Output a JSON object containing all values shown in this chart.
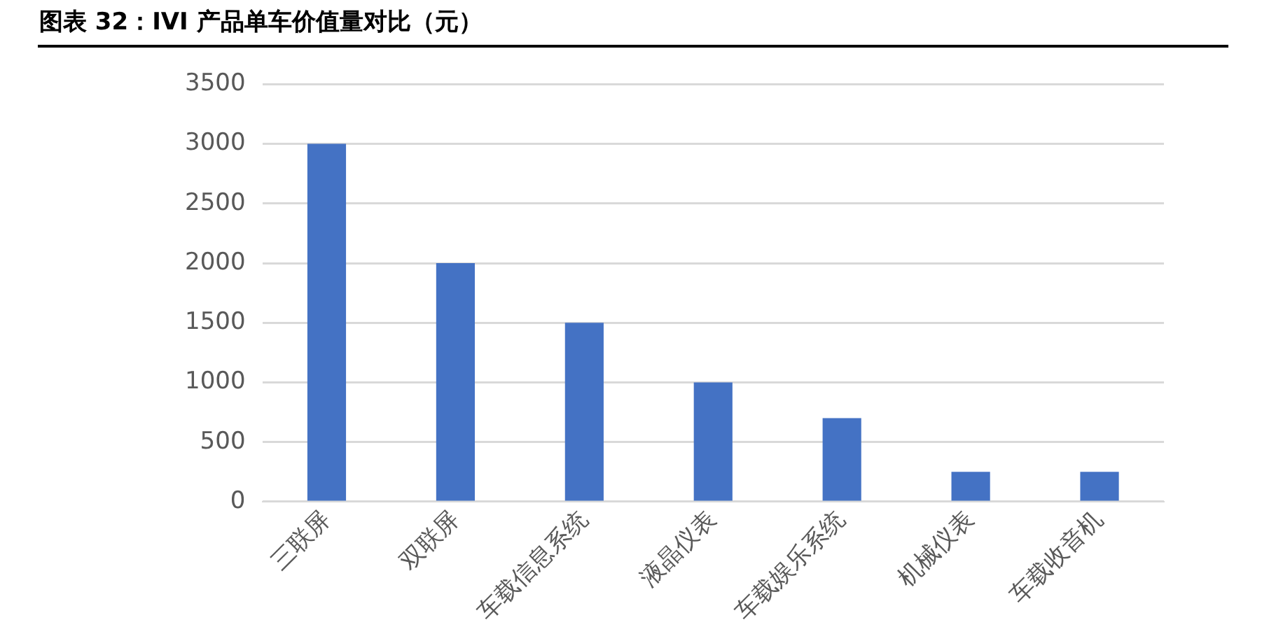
{
  "chart_data": {
    "type": "bar",
    "title": "图表 32：IVI 产品单车价值量对比（元）",
    "categories": [
      "三联屏",
      "双联屏",
      "车载信息系统",
      "液晶仪表",
      "车载娱乐系统",
      "机械仪表",
      "车载收音机"
    ],
    "values": [
      3000,
      2000,
      1500,
      1000,
      700,
      250,
      250
    ],
    "color": "#4472c4",
    "ylim": [
      0,
      3500
    ],
    "yticks": [
      0,
      500,
      1000,
      1500,
      2000,
      2500,
      3000,
      3500
    ],
    "grid": "y"
  }
}
